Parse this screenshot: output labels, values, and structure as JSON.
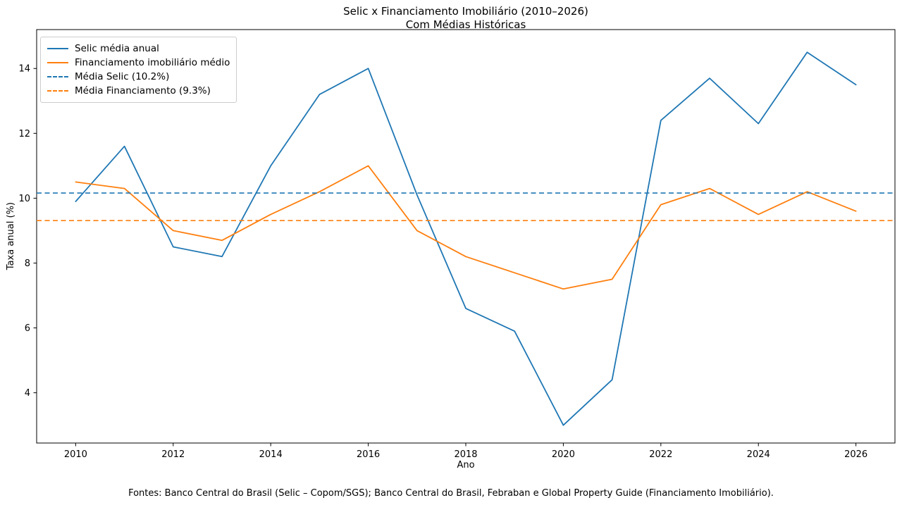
{
  "figure": {
    "footer": "Fontes: Banco Central do Brasil (Selic – Copom/SGS); Banco Central do Brasil, Febraban e Global Property Guide (Financiamento Imobiliário)."
  },
  "chart_data": {
    "type": "line",
    "title": "Selic x Financiamento Imobiliário (2010–2026)",
    "subtitle": "Com Médias Históricas",
    "xlabel": "Ano",
    "ylabel": "Taxa anual (%)",
    "x": [
      2010,
      2011,
      2012,
      2013,
      2014,
      2015,
      2016,
      2017,
      2018,
      2019,
      2020,
      2021,
      2022,
      2023,
      2024,
      2025,
      2026
    ],
    "series": [
      {
        "name": "Selic média anual",
        "color": "#1f77b4",
        "style": "solid",
        "values": [
          9.9,
          11.6,
          8.5,
          8.2,
          11.0,
          13.2,
          14.0,
          10.1,
          6.6,
          5.9,
          3.0,
          4.4,
          12.4,
          13.7,
          12.3,
          14.5,
          13.5
        ]
      },
      {
        "name": "Financiamento imobiliário médio",
        "color": "#ff7f0e",
        "style": "solid",
        "values": [
          10.5,
          10.3,
          9.0,
          8.7,
          9.5,
          10.2,
          11.0,
          9.0,
          8.2,
          7.7,
          7.2,
          7.5,
          9.8,
          10.3,
          9.5,
          10.2,
          9.6
        ]
      },
      {
        "name": "Média Selic (10.2%)",
        "color": "#1f77b4",
        "style": "dashed",
        "constant": 10.16
      },
      {
        "name": "Média Financiamento (9.3%)",
        "color": "#ff7f0e",
        "style": "dashed",
        "constant": 9.31
      }
    ],
    "xticks": [
      2010,
      2012,
      2014,
      2016,
      2018,
      2020,
      2022,
      2024,
      2026
    ],
    "yticks": [
      4,
      6,
      8,
      10,
      12,
      14
    ],
    "xlim": [
      2009.2,
      2026.8
    ],
    "ylim": [
      2.45,
      15.2
    ],
    "legend_position": "upper left",
    "grid": false
  }
}
